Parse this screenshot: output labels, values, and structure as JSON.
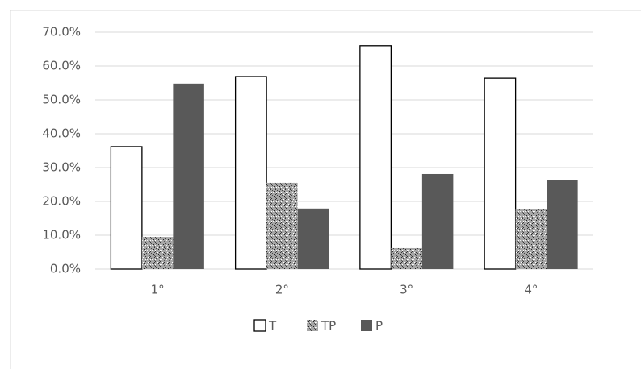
{
  "chart_data": {
    "type": "bar",
    "categories": [
      "1°",
      "2°",
      "3°",
      "4°"
    ],
    "series": [
      {
        "name": "T",
        "color": "#ffffff",
        "values": [
          36.2,
          56.9,
          66.0,
          56.4
        ]
      },
      {
        "name": "TP",
        "color": "#a6a6a6",
        "values": [
          9.5,
          25.5,
          6.2,
          17.6
        ]
      },
      {
        "name": "P",
        "color": "#595959",
        "values": [
          54.8,
          17.9,
          28.1,
          26.2
        ]
      }
    ],
    "ylim": [
      0,
      70
    ],
    "yticks": [
      {
        "value": 0,
        "label": "0.0%"
      },
      {
        "value": 10,
        "label": "10.0%"
      },
      {
        "value": 20,
        "label": "20.0%"
      },
      {
        "value": 30,
        "label": "30.0%"
      },
      {
        "value": 40,
        "label": "40.0%"
      },
      {
        "value": 50,
        "label": "50.0%"
      },
      {
        "value": 60,
        "label": "60.0%"
      },
      {
        "value": 70,
        "label": "70.0%"
      }
    ],
    "grid": true,
    "legend": "bottom"
  }
}
